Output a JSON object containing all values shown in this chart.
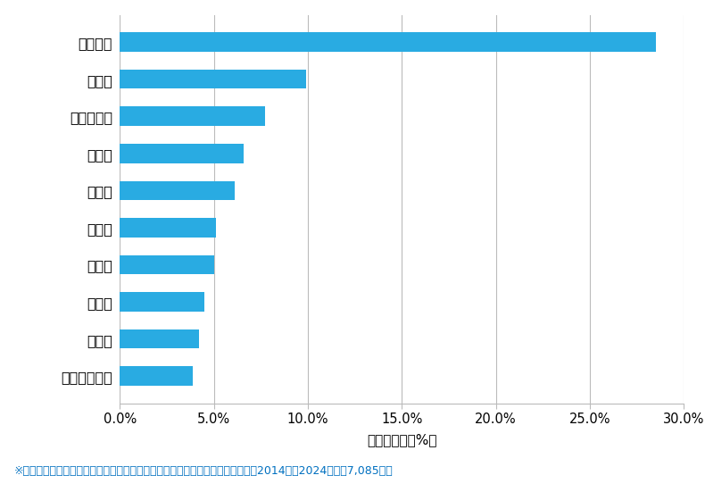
{
  "categories": [
    "那須郡那須町",
    "鹿沼市",
    "佐野市",
    "真岡市",
    "日光市",
    "栃木市",
    "足利市",
    "那須塩原市",
    "小山市",
    "宇都宮市"
  ],
  "values": [
    3.9,
    4.2,
    4.5,
    5.0,
    5.1,
    6.1,
    6.6,
    7.7,
    9.9,
    28.5
  ],
  "bar_color": "#29ABE2",
  "background_color": "#FFFFFF",
  "plot_bg_color": "#FFFFFF",
  "xlabel": "件数の割合（%）",
  "xlim": [
    0,
    30.0
  ],
  "xticks": [
    0,
    5,
    10,
    15,
    20,
    25,
    30
  ],
  "xtick_labels": [
    "0.0%",
    "5.0%",
    "10.0%",
    "15.0%",
    "20.0%",
    "25.0%",
    "30.0%"
  ],
  "footnote": "※弊社受付の案件を対象に、受付時に市区町村の回答があったものを集計（期間2014年～2024年、計7,085件）",
  "footnote_color": "#0070C0",
  "grid_color": "#BBBBBB",
  "bar_height": 0.52
}
